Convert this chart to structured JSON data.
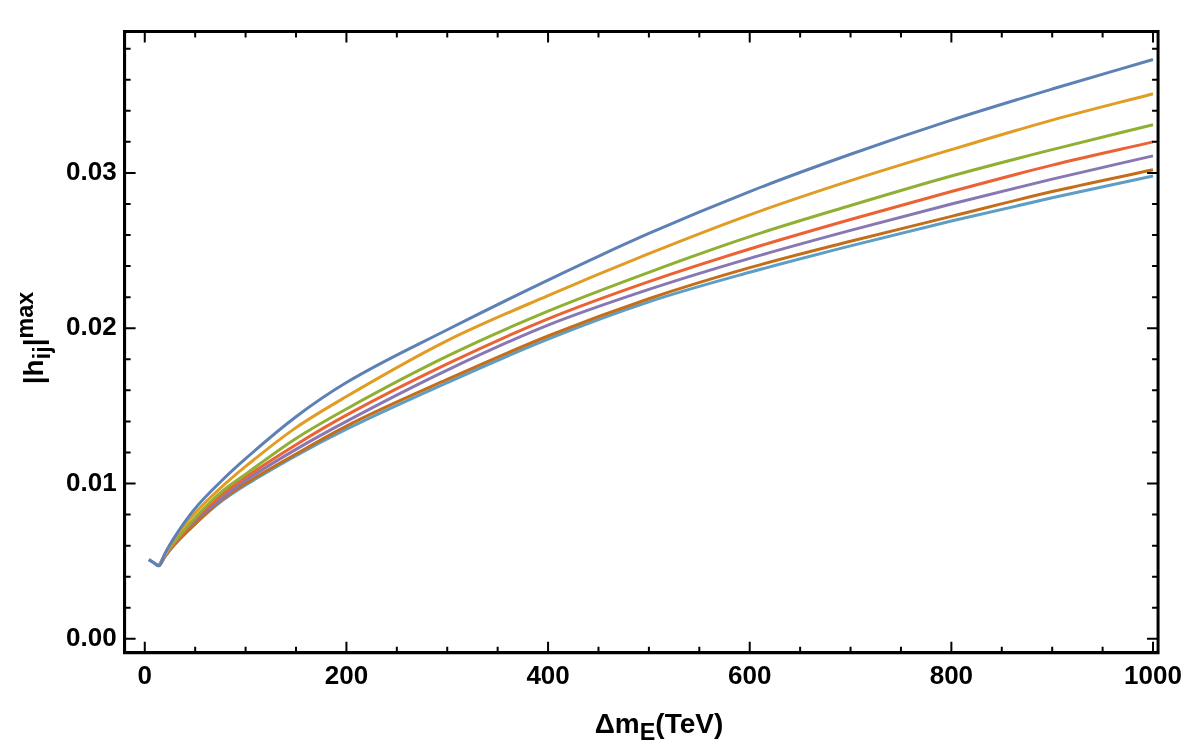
{
  "chart_data": {
    "type": "line",
    "xlabel": "Δm$_{E}$(TeV)",
    "ylabel": "|h$_{ij}$|$^{max}$",
    "x": [
      4,
      9,
      14,
      20,
      30,
      50,
      75,
      100,
      150,
      200,
      300,
      400,
      500,
      600,
      700,
      800,
      900,
      1000
    ],
    "xlim": [
      -20,
      1005
    ],
    "ylim": [
      -0.0009,
      0.0391
    ],
    "xticks": [
      0,
      {
        "value": 50,
        "label": null
      },
      {
        "value": 100,
        "label": null
      },
      {
        "value": 150,
        "label": null
      },
      200,
      {
        "value": 250,
        "label": null
      },
      {
        "value": 300,
        "label": null
      },
      {
        "value": 350,
        "label": null
      },
      400,
      {
        "value": 450,
        "label": null
      },
      {
        "value": 500,
        "label": null
      },
      {
        "value": 550,
        "label": null
      },
      600,
      {
        "value": 650,
        "label": null
      },
      {
        "value": 700,
        "label": null
      },
      {
        "value": 750,
        "label": null
      },
      800,
      {
        "value": 850,
        "label": null
      },
      {
        "value": 900,
        "label": null
      },
      {
        "value": 950,
        "label": null
      },
      1000
    ],
    "yticks": [
      {
        "value": 0,
        "label": "0.00"
      },
      {
        "value": 0.002,
        "label": null
      },
      {
        "value": 0.004,
        "label": null
      },
      {
        "value": 0.006,
        "label": null
      },
      {
        "value": 0.008,
        "label": null
      },
      {
        "value": 0.01,
        "label": "0.01"
      },
      {
        "value": 0.012,
        "label": null
      },
      {
        "value": 0.014,
        "label": null
      },
      {
        "value": 0.016,
        "label": null
      },
      {
        "value": 0.018,
        "label": null
      },
      {
        "value": 0.02,
        "label": "0.02"
      },
      {
        "value": 0.022,
        "label": null
      },
      {
        "value": 0.024,
        "label": null
      },
      {
        "value": 0.026,
        "label": null
      },
      {
        "value": 0.028,
        "label": null
      },
      {
        "value": 0.03,
        "label": "0.03"
      },
      {
        "value": 0.032,
        "label": null
      },
      {
        "value": 0.034,
        "label": null
      },
      {
        "value": 0.036,
        "label": null
      },
      {
        "value": 0.038,
        "label": null
      }
    ],
    "marker": "none",
    "line_style": "solid",
    "legend": false,
    "series": [
      {
        "color": "#5e81b5",
        "values": [
          0.0051,
          0.0049,
          0.0047,
          0.0055,
          0.0066,
          0.0084,
          0.0101,
          0.0116,
          0.0143,
          0.0165,
          0.0199,
          0.0231,
          0.0261,
          0.0288,
          0.0312,
          0.0334,
          0.0354,
          0.0373
        ]
      },
      {
        "color": "#e19c24",
        "values": [
          null,
          null,
          0.0047,
          0.0054,
          0.0065,
          0.0081,
          0.0097,
          0.0111,
          0.0136,
          0.0156,
          0.0192,
          0.0221,
          0.0248,
          0.0273,
          0.0295,
          0.0315,
          0.0334,
          0.0351
        ]
      },
      {
        "color": "#8fb032",
        "values": [
          null,
          null,
          0.0047,
          0.0054,
          0.0063,
          0.0078,
          0.0094,
          0.0106,
          0.0129,
          0.0148,
          0.0182,
          0.0211,
          0.0236,
          0.0259,
          0.0279,
          0.0298,
          0.0315,
          0.0331
        ]
      },
      {
        "color": "#eb6235",
        "values": [
          null,
          null,
          0.0047,
          0.0054,
          0.0062,
          0.0077,
          0.0092,
          0.0104,
          0.0125,
          0.0144,
          0.0177,
          0.0206,
          0.023,
          0.0251,
          0.027,
          0.0288,
          0.0305,
          0.032
        ]
      },
      {
        "color": "#8778b3",
        "values": [
          null,
          null,
          0.0047,
          0.0053,
          0.0062,
          0.0076,
          0.009,
          0.0102,
          0.0122,
          0.014,
          0.0173,
          0.0202,
          0.0225,
          0.0245,
          0.0263,
          0.028,
          0.0296,
          0.0311
        ]
      },
      {
        "color": "#c56e1a",
        "values": [
          null,
          null,
          0.0047,
          0.0053,
          0.0061,
          0.0074,
          0.0089,
          0.01,
          0.0119,
          0.0137,
          0.0167,
          0.0195,
          0.0219,
          0.0239,
          0.0256,
          0.0272,
          0.0288,
          0.0302
        ]
      },
      {
        "color": "#5d9ec7",
        "values": [
          0.0051,
          0.0049,
          0.0047,
          0.0053,
          0.0061,
          0.0074,
          0.0088,
          0.0099,
          0.0118,
          0.0135,
          0.0165,
          0.0193,
          0.0217,
          0.0236,
          0.0253,
          0.0269,
          0.0284,
          0.0298
        ]
      }
    ]
  }
}
